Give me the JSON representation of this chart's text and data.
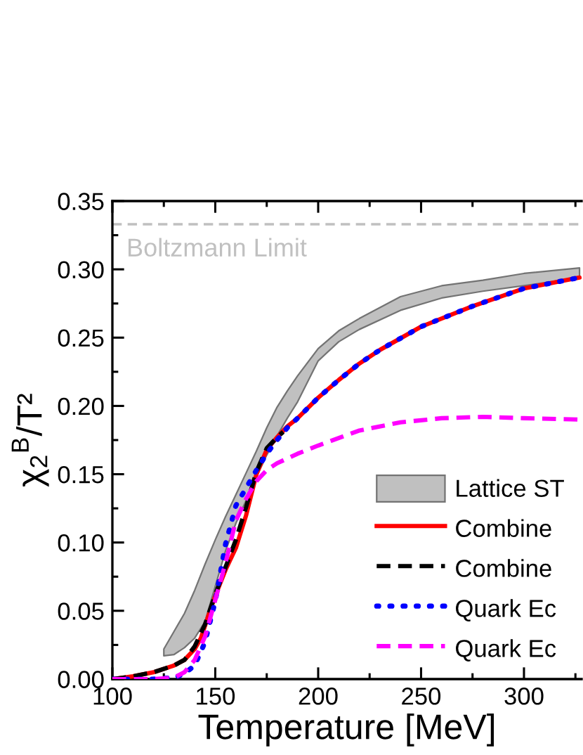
{
  "chart_data": {
    "type": "line",
    "xlabel": "Temperature [MeV]",
    "ylabel": "χ$_{2}$$^{B}$/T²",
    "xlim": [
      100,
      328
    ],
    "xticks": [
      100,
      {
        "value": 125,
        "label": null
      },
      150,
      {
        "value": 175,
        "label": null
      },
      200,
      {
        "value": 225,
        "label": null
      },
      250,
      {
        "value": 275,
        "label": null
      },
      300,
      {
        "value": 325,
        "label": null
      }
    ],
    "ylim": [
      0,
      0.35
    ],
    "yticks": [
      {
        "value": 0,
        "label": "0.00"
      },
      {
        "value": 0.025,
        "label": null
      },
      {
        "value": 0.05,
        "label": "0.05"
      },
      {
        "value": 0.075,
        "label": null
      },
      {
        "value": 0.1,
        "label": "0.10"
      },
      {
        "value": 0.125,
        "label": null
      },
      {
        "value": 0.15,
        "label": "0.15"
      },
      {
        "value": 0.175,
        "label": null
      },
      {
        "value": 0.2,
        "label": "0.20"
      },
      {
        "value": 0.225,
        "label": null
      },
      {
        "value": 0.25,
        "label": "0.25"
      },
      {
        "value": 0.275,
        "label": null
      },
      {
        "value": 0.3,
        "label": "0.30"
      },
      {
        "value": 0.325,
        "label": null
      },
      {
        "value": 0.35,
        "label": "0.35"
      }
    ],
    "ref_lines": [
      {
        "axis": "y",
        "value": 0.333,
        "label": "Boltzmann Limit",
        "color": "#c0c0c0",
        "line_style": "dashed"
      }
    ],
    "legend": "bottom right",
    "series": [
      {
        "name": "Lattice ST",
        "color": "#c0c0c0",
        "x": [
          125,
          130,
          135,
          140,
          145,
          150,
          155,
          160,
          165,
          170,
          175,
          180,
          185,
          190,
          200,
          210,
          220,
          240,
          260,
          280,
          300,
          327
        ],
        "values": [
          null,
          null,
          null,
          null,
          null,
          null,
          null,
          null,
          null,
          null,
          null,
          null,
          null,
          null,
          null,
          null,
          null,
          null,
          null,
          null,
          null,
          null
        ],
        "lower": [
          0.017,
          0.018,
          0.023,
          0.03,
          0.042,
          0.068,
          0.094,
          0.114,
          0.131,
          0.148,
          0.164,
          0.178,
          0.191,
          0.203,
          0.233,
          0.247,
          0.256,
          0.27,
          0.279,
          0.284,
          0.288,
          0.294
        ],
        "upper": [
          0.022,
          0.035,
          0.048,
          0.065,
          0.084,
          0.102,
          0.119,
          0.135,
          0.151,
          0.167,
          0.184,
          0.199,
          0.211,
          0.222,
          0.242,
          0.255,
          0.264,
          0.28,
          0.288,
          0.292,
          0.297,
          0.301
        ]
      },
      {
        "name": "Combine",
        "color": "#ff0000",
        "line_style": "solid",
        "x": [
          100,
          110,
          120,
          130,
          135,
          140,
          143,
          147,
          150,
          155,
          160,
          165,
          170,
          175,
          180,
          185,
          190,
          200,
          210,
          220,
          230,
          250,
          275,
          300,
          327
        ],
        "values": [
          0,
          0.002,
          0.005,
          0.01,
          0.014,
          0.022,
          0.03,
          0.048,
          0.061,
          0.08,
          0.096,
          0.12,
          0.15,
          0.168,
          0.177,
          0.185,
          0.191,
          0.206,
          0.219,
          0.231,
          0.241,
          0.258,
          0.273,
          0.286,
          0.294
        ]
      },
      {
        "name": "Combine",
        "color": "#000000",
        "line_style": "dashed",
        "x": [
          100,
          110,
          120,
          130,
          135,
          140,
          145,
          150,
          155,
          160,
          165,
          170,
          175,
          180,
          183
        ],
        "values": [
          0,
          0.002,
          0.005,
          0.01,
          0.014,
          0.024,
          0.04,
          0.062,
          0.082,
          0.102,
          0.126,
          0.152,
          0.169,
          0.177,
          0.181
        ]
      },
      {
        "name": "Quark Ec",
        "color": "#0000ff",
        "line_style": "dotted",
        "x": [
          100,
          110,
          120,
          130,
          135,
          140,
          145,
          150,
          155,
          160,
          165,
          170,
          175,
          180,
          185,
          190,
          200,
          210,
          220,
          230,
          250,
          275,
          300,
          327
        ],
        "values": [
          0,
          0,
          0,
          0.001,
          0.004,
          0.01,
          0.027,
          0.057,
          0.099,
          0.127,
          0.14,
          0.153,
          0.165,
          0.175,
          0.184,
          0.191,
          0.206,
          0.219,
          0.231,
          0.241,
          0.258,
          0.273,
          0.286,
          0.294
        ]
      },
      {
        "name": "Quark Ec",
        "color": "#ff00ff",
        "line_style": "dashed",
        "x": [
          100,
          120,
          130,
          135,
          140,
          145,
          150,
          155,
          160,
          165,
          170,
          175,
          180,
          190,
          200,
          220,
          240,
          260,
          280,
          300,
          327
        ],
        "values": [
          0,
          0,
          0.001,
          0.005,
          0.014,
          0.031,
          0.058,
          0.085,
          0.116,
          0.132,
          0.145,
          0.153,
          0.158,
          0.165,
          0.171,
          0.182,
          0.188,
          0.191,
          0.192,
          0.191,
          0.19
        ]
      }
    ]
  }
}
